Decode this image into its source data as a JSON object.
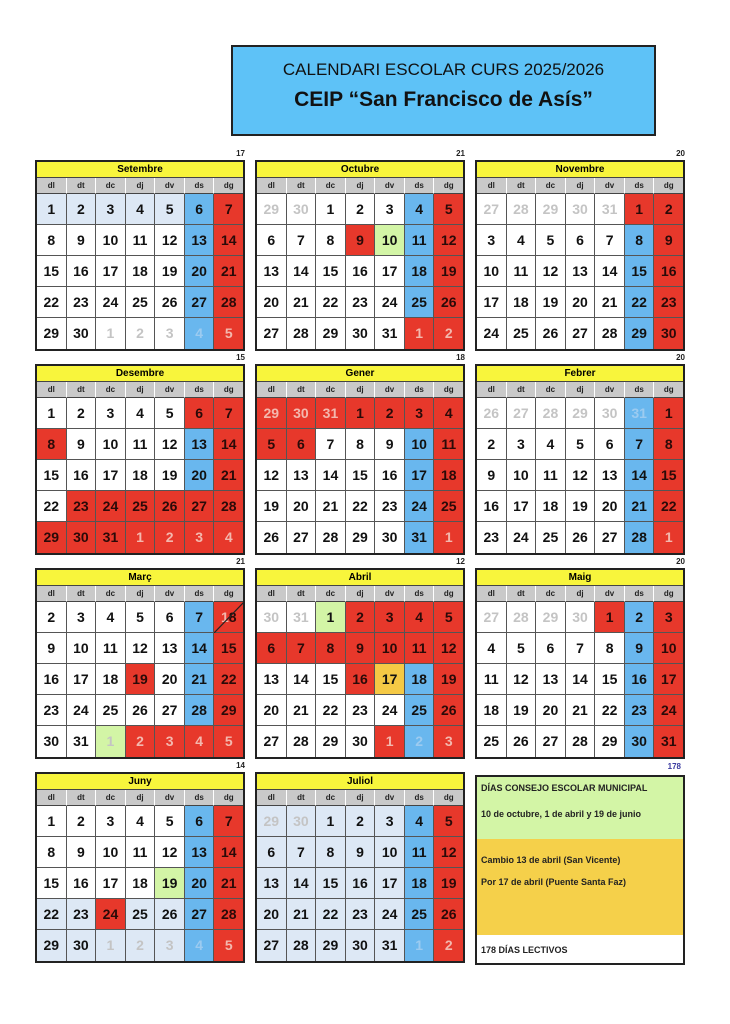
{
  "header": {
    "line1": "CALENDARI ESCOLAR CURS   2025/2026",
    "line2": "CEIP “San Francisco de Asís”"
  },
  "weekdays": [
    "dl",
    "dt",
    "dc",
    "dj",
    "dv",
    "ds",
    "dg"
  ],
  "colors": {
    "weekday": "#ffffff",
    "saturday": "#69b7ee",
    "holiday": "#e7382b",
    "non_school_weekday": "#dde8f5",
    "consejo": "#d3f5a6",
    "cambio": "#f5c945",
    "month_header": "#f8f53c",
    "title_bg": "#5ec2f7"
  },
  "cell_legend": "day:type(w=white,s=saturday,h=holiday,p=no school,g=consejo,o=cambio):x=other month",
  "months": [
    {
      "name": "Setembre",
      "count": "17",
      "days": [
        "1:p",
        "2:p",
        "3:p",
        "4:p",
        "5:p",
        "6:s",
        "7:h",
        "8:w",
        "9:w",
        "10:w",
        "11:w",
        "12:w",
        "13:s",
        "14:h",
        "15:w",
        "16:w",
        "17:w",
        "18:w",
        "19:w",
        "20:s",
        "21:h",
        "22:w",
        "23:w",
        "24:w",
        "25:w",
        "26:w",
        "27:s",
        "28:h",
        "29:w",
        "30:w",
        "1:w:x",
        "2:w:x",
        "3:w:x",
        "4:s:x",
        "5:h:x"
      ]
    },
    {
      "name": "Octubre",
      "count": "21",
      "days": [
        "29:w:x",
        "30:w:x",
        "1:w",
        "2:w",
        "3:w",
        "4:s",
        "5:h",
        "6:w",
        "7:w",
        "8:w",
        "9:h",
        "10:g",
        "11:s",
        "12:h",
        "13:w",
        "14:w",
        "15:w",
        "16:w",
        "17:w",
        "18:s",
        "19:h",
        "20:w",
        "21:w",
        "22:w",
        "23:w",
        "24:w",
        "25:s",
        "26:h",
        "27:w",
        "28:w",
        "29:w",
        "30:w",
        "31:w",
        "1:h:x",
        "2:h:x"
      ]
    },
    {
      "name": "Novembre",
      "count": "20",
      "days": [
        "27:w:x",
        "28:w:x",
        "29:w:x",
        "30:w:x",
        "31:w:x",
        "1:h",
        "2:h",
        "3:w",
        "4:w",
        "5:w",
        "6:w",
        "7:w",
        "8:s",
        "9:h",
        "10:w",
        "11:w",
        "12:w",
        "13:w",
        "14:w",
        "15:s",
        "16:h",
        "17:w",
        "18:w",
        "19:w",
        "20:w",
        "21:w",
        "22:s",
        "23:h",
        "24:w",
        "25:w",
        "26:w",
        "27:w",
        "28:w",
        "29:s",
        "30:h"
      ]
    },
    {
      "name": "Desembre",
      "count": "15",
      "days": [
        "1:w",
        "2:w",
        "3:w",
        "4:w",
        "5:w",
        "6:h",
        "7:h",
        "8:h",
        "9:w",
        "10:w",
        "11:w",
        "12:w",
        "13:s",
        "14:h",
        "15:w",
        "16:w",
        "17:w",
        "18:w",
        "19:w",
        "20:s",
        "21:h",
        "22:w",
        "23:h",
        "24:h",
        "25:h",
        "26:h",
        "27:h",
        "28:h",
        "29:h",
        "30:h",
        "31:h",
        "1:h:x",
        "2:h:x",
        "3:h:x",
        "4:h:x"
      ]
    },
    {
      "name": "Gener",
      "count": "18",
      "days": [
        "29:h:x",
        "30:h:x",
        "31:h:x",
        "1:h",
        "2:h",
        "3:h",
        "4:h",
        "5:h",
        "6:h",
        "7:w",
        "8:w",
        "9:w",
        "10:s",
        "11:h",
        "12:w",
        "13:w",
        "14:w",
        "15:w",
        "16:w",
        "17:s",
        "18:h",
        "19:w",
        "20:w",
        "21:w",
        "22:w",
        "23:w",
        "24:s",
        "25:h",
        "26:w",
        "27:w",
        "28:w",
        "29:w",
        "30:w",
        "31:s",
        "1:h:x"
      ]
    },
    {
      "name": "Febrer",
      "count": "20",
      "days": [
        "26:w:x",
        "27:w:x",
        "28:w:x",
        "29:w:x",
        "30:w:x",
        "31:s:x",
        "1:h",
        "2:w",
        "3:w",
        "4:w",
        "5:w",
        "6:w",
        "7:s",
        "8:h",
        "9:w",
        "10:w",
        "11:w",
        "12:w",
        "13:w",
        "14:s",
        "15:h",
        "16:w",
        "17:w",
        "18:w",
        "19:w",
        "20:w",
        "21:s",
        "22:h",
        "23:w",
        "24:w",
        "25:w",
        "26:w",
        "27:w",
        "28:s",
        "1:h:x"
      ]
    },
    {
      "name": "Març",
      "count": "21",
      "days": [
        "2:w",
        "3:w",
        "4:w",
        "5:w",
        "6:w",
        "7:s",
        "1/8:h",
        "9:w",
        "10:w",
        "11:w",
        "12:w",
        "13:w",
        "14:s",
        "15:h",
        "16:w",
        "17:w",
        "18:w",
        "19:h",
        "20:w",
        "21:s",
        "22:h",
        "23:w",
        "24:w",
        "25:w",
        "26:w",
        "27:w",
        "28:s",
        "29:h",
        "30:w",
        "31:w",
        "1:g:x",
        "2:h:x",
        "3:h:x",
        "4:h:x",
        "5:h:x"
      ]
    },
    {
      "name": "Abril",
      "count": "12",
      "days": [
        "30:w:x",
        "31:w:x",
        "1:g",
        "2:h",
        "3:h",
        "4:h",
        "5:h",
        "6:h",
        "7:h",
        "8:h",
        "9:h",
        "10:h",
        "11:h",
        "12:h",
        "13:w",
        "14:w",
        "15:w",
        "16:h",
        "17:o",
        "18:s",
        "19:h",
        "20:w",
        "21:w",
        "22:w",
        "23:w",
        "24:w",
        "25:s",
        "26:h",
        "27:w",
        "28:w",
        "29:w",
        "30:w",
        "1:h:x",
        "2:s:x",
        "3:h:x"
      ]
    },
    {
      "name": "Maig",
      "count": "20",
      "days": [
        "27:w:x",
        "28:w:x",
        "29:w:x",
        "30:w:x",
        "1:h",
        "2:s",
        "3:h",
        "4:w",
        "5:w",
        "6:w",
        "7:w",
        "8:w",
        "9:s",
        "10:h",
        "11:w",
        "12:w",
        "13:w",
        "14:w",
        "15:w",
        "16:s",
        "17:h",
        "18:w",
        "19:w",
        "20:w",
        "21:w",
        "22:w",
        "23:s",
        "24:h",
        "25:w",
        "26:w",
        "27:w",
        "28:w",
        "29:w",
        "30:s",
        "31:h"
      ]
    },
    {
      "name": "Juny",
      "count": "14",
      "days": [
        "1:w",
        "2:w",
        "3:w",
        "4:w",
        "5:w",
        "6:s",
        "7:h",
        "8:w",
        "9:w",
        "10:w",
        "11:w",
        "12:w",
        "13:s",
        "14:h",
        "15:w",
        "16:w",
        "17:w",
        "18:w",
        "19:g",
        "20:s",
        "21:h",
        "22:p",
        "23:p",
        "24:h",
        "25:p",
        "26:p",
        "27:s",
        "28:h",
        "29:p",
        "30:p",
        "1:p:x",
        "2:p:x",
        "3:p:x",
        "4:s:x",
        "5:h:x"
      ]
    },
    {
      "name": "Juliol",
      "count": "",
      "days": [
        "29:p:x",
        "30:p:x",
        "1:p",
        "2:p",
        "3:p",
        "4:s",
        "5:h",
        "6:p",
        "7:p",
        "8:p",
        "9:p",
        "10:p",
        "11:s",
        "12:h",
        "13:p",
        "14:p",
        "15:p",
        "16:p",
        "17:p",
        "18:s",
        "19:h",
        "20:p",
        "21:p",
        "22:p",
        "23:p",
        "24:p",
        "25:s",
        "26:h",
        "27:p",
        "28:p",
        "29:p",
        "30:p",
        "31:p",
        "1:s:x",
        "2:h:x"
      ]
    }
  ],
  "total": "178",
  "legend": {
    "consejo_title": "DÍAS CONSEJO ESCOLAR MUNICIPAL",
    "consejo_days": "10 de octubre, 1 de abril y 19 de junio",
    "cambio_1": "Cambio 13 de abril (San Vicente)",
    "cambio_2": "Por 17 de abril (Puente Santa Faz)",
    "lectivos": "178 DÍAS LECTIVOS"
  }
}
